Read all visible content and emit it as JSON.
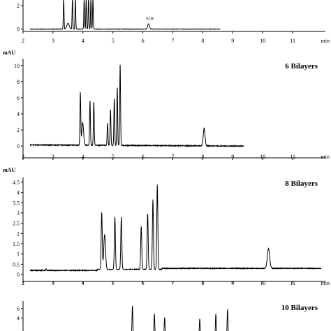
{
  "chart_data": [
    {
      "type": "line",
      "title": "",
      "ylabel": "",
      "xlabel": "min",
      "xlim": [
        2,
        12
      ],
      "ylim": [
        -0.2,
        2.6
      ],
      "x_ticks": [
        2,
        3,
        4,
        5,
        6,
        7,
        8,
        9,
        10,
        11
      ],
      "y_ticks": [
        0,
        2
      ],
      "annotations": [
        {
          "text": "EOF",
          "x": 6.1,
          "y": 0.55
        }
      ],
      "baseline": 0.0,
      "trace_end": 8.5,
      "peaks": [
        {
          "x": 3.15,
          "h": 2.6,
          "w": 0.012
        },
        {
          "x": 3.3,
          "h": 0.5,
          "w": 0.04
        },
        {
          "x": 3.45,
          "h": 2.6,
          "w": 0.012
        },
        {
          "x": 3.55,
          "h": 2.6,
          "w": 0.012
        },
        {
          "x": 3.85,
          "h": 2.6,
          "w": 0.012
        },
        {
          "x": 3.92,
          "h": 2.6,
          "w": 0.012
        },
        {
          "x": 4.0,
          "h": 2.6,
          "w": 0.012
        },
        {
          "x": 4.08,
          "h": 2.6,
          "w": 0.012
        },
        {
          "x": 4.15,
          "h": 2.6,
          "w": 0.012
        },
        {
          "x": 6.05,
          "h": 0.45,
          "w": 0.03
        }
      ]
    },
    {
      "type": "line",
      "title": "6 Bilayers",
      "ylabel": "mAU",
      "xlabel": "min",
      "xlim": [
        2,
        12
      ],
      "ylim": [
        -0.5,
        10.5
      ],
      "x_ticks": [
        2,
        3,
        4,
        5,
        6,
        7,
        8,
        9,
        10,
        11
      ],
      "y_ticks": [
        0,
        2,
        4,
        6,
        8,
        10
      ],
      "baseline": 0.0,
      "trace_end": 9.3,
      "peaks": [
        {
          "x": 3.72,
          "h": 6.5,
          "w": 0.014
        },
        {
          "x": 3.8,
          "h": 2.8,
          "w": 0.03
        },
        {
          "x": 4.05,
          "h": 5.5,
          "w": 0.014
        },
        {
          "x": 4.18,
          "h": 5.4,
          "w": 0.014
        },
        {
          "x": 4.65,
          "h": 2.8,
          "w": 0.014
        },
        {
          "x": 4.75,
          "h": 4.5,
          "w": 0.014
        },
        {
          "x": 4.88,
          "h": 5.8,
          "w": 0.014
        },
        {
          "x": 4.98,
          "h": 7.2,
          "w": 0.014
        },
        {
          "x": 5.08,
          "h": 10.1,
          "w": 0.014
        },
        {
          "x": 7.95,
          "h": 2.2,
          "w": 0.03
        }
      ]
    },
    {
      "type": "line",
      "title": "8 Bilayers",
      "ylabel": "mAU",
      "xlabel": "min",
      "xlim": [
        2,
        12
      ],
      "ylim": [
        -0.1,
        4.6
      ],
      "x_ticks": [
        2,
        3,
        4,
        5,
        6,
        7,
        8,
        9,
        10,
        11
      ],
      "y_ticks": [
        0,
        0.5,
        1,
        1.5,
        2,
        2.5,
        3,
        3.5,
        4,
        4.5
      ],
      "y_tick_labels": [
        "0",
        "0.5",
        "1",
        "1.5",
        "2",
        "2.5",
        "3",
        "3.5",
        "4",
        "4.5"
      ],
      "baseline": 0.25,
      "trace_end": 11.95,
      "peaks": [
        {
          "x": 2.55,
          "h": 0.1,
          "w": 0.01
        },
        {
          "x": 4.45,
          "h": 2.8,
          "w": 0.018
        },
        {
          "x": 4.55,
          "h": 1.7,
          "w": 0.03
        },
        {
          "x": 4.9,
          "h": 2.55,
          "w": 0.018
        },
        {
          "x": 5.12,
          "h": 2.55,
          "w": 0.018
        },
        {
          "x": 5.8,
          "h": 2.1,
          "w": 0.018
        },
        {
          "x": 6.02,
          "h": 2.75,
          "w": 0.018
        },
        {
          "x": 6.2,
          "h": 3.4,
          "w": 0.018
        },
        {
          "x": 6.35,
          "h": 4.15,
          "w": 0.018
        },
        {
          "x": 10.15,
          "h": 0.95,
          "w": 0.04
        }
      ]
    },
    {
      "type": "line",
      "title": "10 Bilayers",
      "ylabel": "",
      "xlabel": "",
      "xlim": [
        2,
        12
      ],
      "ylim": [
        -0.5,
        7
      ],
      "x_ticks": [],
      "y_ticks": [
        4,
        6
      ],
      "baseline": 0.0,
      "trace_end": 12,
      "peaks": [
        {
          "x": 5.5,
          "h": 6.6,
          "w": 0.014
        },
        {
          "x": 6.25,
          "h": 4.9,
          "w": 0.014
        },
        {
          "x": 6.6,
          "h": 4.1,
          "w": 0.014
        },
        {
          "x": 7.8,
          "h": 3.8,
          "w": 0.014
        },
        {
          "x": 8.35,
          "h": 4.9,
          "w": 0.014
        },
        {
          "x": 8.75,
          "h": 5.8,
          "w": 0.014
        }
      ]
    }
  ]
}
